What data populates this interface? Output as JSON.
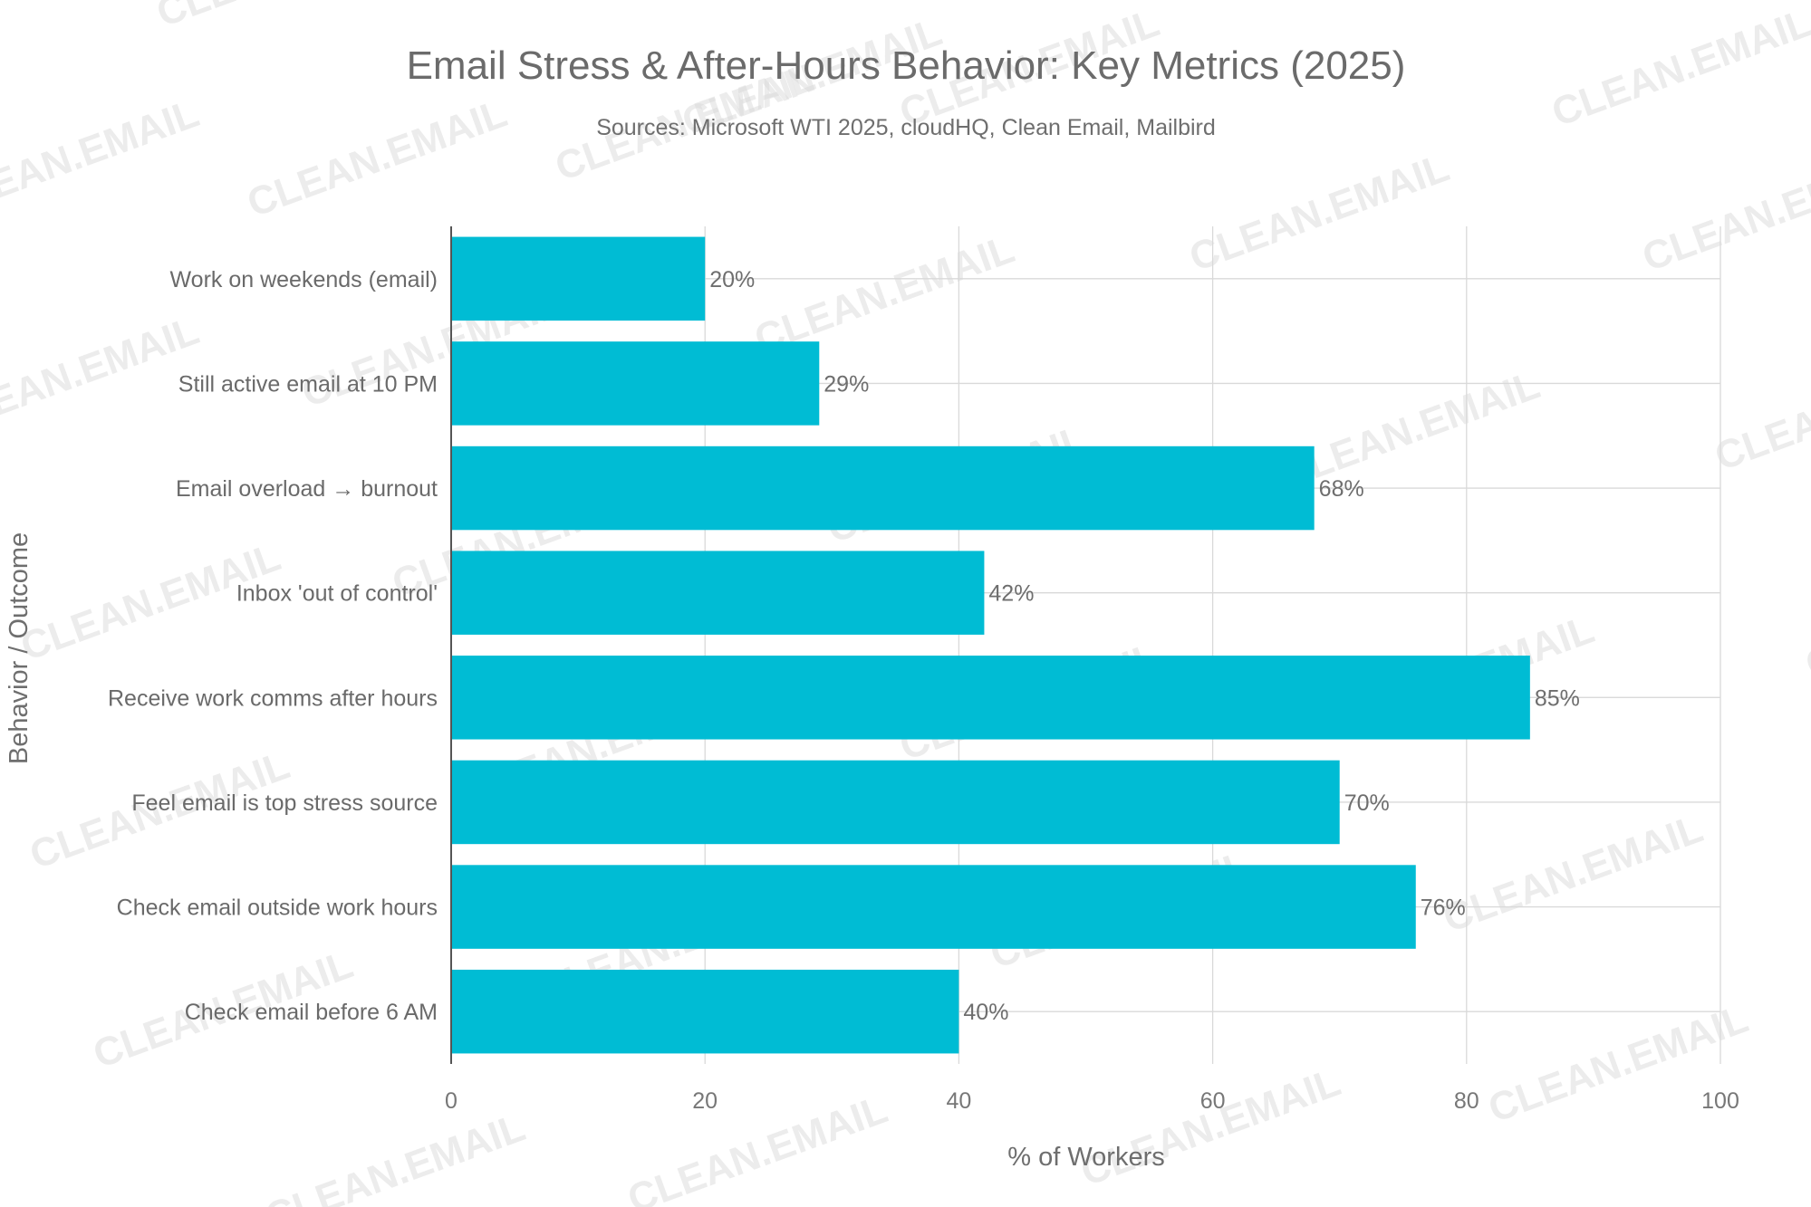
{
  "chart_data": {
    "type": "bar",
    "orientation": "horizontal",
    "title": "Email Stress & After-Hours Behavior: Key Metrics (2025)",
    "subtitle": "Sources: Microsoft WTI 2025, cloudHQ, Clean Email, Mailbird",
    "xlabel": "% of Workers",
    "ylabel": "Behavior / Outcome",
    "xlim": [
      0,
      100
    ],
    "xticks": [
      0,
      20,
      40,
      60,
      80,
      100
    ],
    "grid": true,
    "bar_color": "#00bcd4",
    "categories": [
      "Work on weekends (email)",
      "Still active email at 10 PM",
      "Email overload → burnout",
      "Inbox 'out of control'",
      "Receive work comms after hours",
      "Feel email is top stress source",
      "Check email outside work hours",
      "Check email before 6 AM"
    ],
    "values": [
      20,
      29,
      68,
      42,
      85,
      70,
      76,
      40
    ],
    "value_labels": [
      "20%",
      "29%",
      "68%",
      "42%",
      "85%",
      "70%",
      "76%",
      "40%"
    ]
  },
  "watermark": "CLEAN.EMAIL"
}
